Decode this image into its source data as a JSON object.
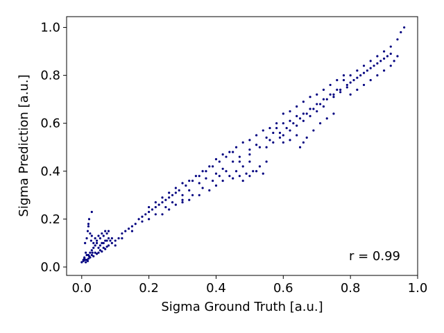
{
  "chart_data": {
    "type": "scatter",
    "title": "",
    "xlabel": "Sigma Ground Truth [a.u.]",
    "ylabel": "Sigma Prediction [a.u.]",
    "xlim": [
      -0.045,
      1.0
    ],
    "ylim": [
      -0.035,
      1.045
    ],
    "xticks": [
      0.0,
      0.2,
      0.4,
      0.6,
      0.8,
      1.0
    ],
    "xtick_labels": [
      "0.0",
      "0.2",
      "0.4",
      "0.6",
      "0.8",
      "1.0"
    ],
    "yticks": [
      0.0,
      0.2,
      0.4,
      0.6,
      0.8,
      1.0
    ],
    "ytick_labels": [
      "0.0",
      "0.2",
      "0.4",
      "0.6",
      "0.8",
      "1.0"
    ],
    "grid": false,
    "legend": "none",
    "annotation": "r = 0.99",
    "marker_color": "#000080",
    "points": [
      [
        0.0,
        0.02
      ],
      [
        0.005,
        0.025
      ],
      [
        0.01,
        0.03
      ],
      [
        0.008,
        0.04
      ],
      [
        0.012,
        0.06
      ],
      [
        0.015,
        0.05
      ],
      [
        0.02,
        0.035
      ],
      [
        0.022,
        0.045
      ],
      [
        0.025,
        0.04
      ],
      [
        0.03,
        0.05
      ],
      [
        0.032,
        0.06
      ],
      [
        0.035,
        0.045
      ],
      [
        0.04,
        0.06
      ],
      [
        0.045,
        0.055
      ],
      [
        0.05,
        0.06
      ],
      [
        0.055,
        0.07
      ],
      [
        0.06,
        0.065
      ],
      [
        0.065,
        0.08
      ],
      [
        0.07,
        0.075
      ],
      [
        0.075,
        0.085
      ],
      [
        0.01,
        0.1
      ],
      [
        0.015,
        0.12
      ],
      [
        0.018,
        0.15
      ],
      [
        0.02,
        0.17
      ],
      [
        0.022,
        0.2
      ],
      [
        0.025,
        0.14
      ],
      [
        0.028,
        0.11
      ],
      [
        0.03,
        0.13
      ],
      [
        0.035,
        0.1
      ],
      [
        0.04,
        0.12
      ],
      [
        0.045,
        0.11
      ],
      [
        0.05,
        0.13
      ],
      [
        0.055,
        0.12
      ],
      [
        0.06,
        0.14
      ],
      [
        0.065,
        0.13
      ],
      [
        0.07,
        0.15
      ],
      [
        0.075,
        0.14
      ],
      [
        0.08,
        0.15
      ],
      [
        0.03,
        0.23
      ],
      [
        0.02,
        0.18
      ],
      [
        0.08,
        0.09
      ],
      [
        0.09,
        0.1
      ],
      [
        0.1,
        0.11
      ],
      [
        0.11,
        0.12
      ],
      [
        0.12,
        0.14
      ],
      [
        0.13,
        0.15
      ],
      [
        0.14,
        0.16
      ],
      [
        0.15,
        0.17
      ],
      [
        0.16,
        0.18
      ],
      [
        0.17,
        0.2
      ],
      [
        0.18,
        0.21
      ],
      [
        0.19,
        0.22
      ],
      [
        0.2,
        0.23
      ],
      [
        0.21,
        0.24
      ],
      [
        0.22,
        0.25
      ],
      [
        0.23,
        0.26
      ],
      [
        0.24,
        0.27
      ],
      [
        0.25,
        0.28
      ],
      [
        0.26,
        0.29
      ],
      [
        0.27,
        0.3
      ],
      [
        0.1,
        0.09
      ],
      [
        0.12,
        0.12
      ],
      [
        0.15,
        0.15
      ],
      [
        0.18,
        0.19
      ],
      [
        0.2,
        0.2
      ],
      [
        0.22,
        0.22
      ],
      [
        0.25,
        0.25
      ],
      [
        0.27,
        0.27
      ],
      [
        0.3,
        0.3
      ],
      [
        0.32,
        0.32
      ],
      [
        0.2,
        0.25
      ],
      [
        0.22,
        0.27
      ],
      [
        0.24,
        0.29
      ],
      [
        0.26,
        0.31
      ],
      [
        0.28,
        0.33
      ],
      [
        0.3,
        0.35
      ],
      [
        0.32,
        0.36
      ],
      [
        0.34,
        0.38
      ],
      [
        0.36,
        0.4
      ],
      [
        0.38,
        0.42
      ],
      [
        0.28,
        0.31
      ],
      [
        0.29,
        0.32
      ],
      [
        0.31,
        0.34
      ],
      [
        0.33,
        0.36
      ],
      [
        0.35,
        0.38
      ],
      [
        0.37,
        0.4
      ],
      [
        0.39,
        0.42
      ],
      [
        0.41,
        0.44
      ],
      [
        0.43,
        0.46
      ],
      [
        0.45,
        0.48
      ],
      [
        0.3,
        0.27
      ],
      [
        0.32,
        0.28
      ],
      [
        0.35,
        0.3
      ],
      [
        0.38,
        0.32
      ],
      [
        0.4,
        0.34
      ],
      [
        0.42,
        0.36
      ],
      [
        0.44,
        0.38
      ],
      [
        0.46,
        0.4
      ],
      [
        0.48,
        0.42
      ],
      [
        0.5,
        0.44
      ],
      [
        0.35,
        0.35
      ],
      [
        0.37,
        0.37
      ],
      [
        0.4,
        0.39
      ],
      [
        0.42,
        0.41
      ],
      [
        0.45,
        0.44
      ],
      [
        0.47,
        0.46
      ],
      [
        0.5,
        0.49
      ],
      [
        0.52,
        0.51
      ],
      [
        0.55,
        0.54
      ],
      [
        0.57,
        0.56
      ],
      [
        0.4,
        0.45
      ],
      [
        0.42,
        0.47
      ],
      [
        0.44,
        0.48
      ],
      [
        0.46,
        0.5
      ],
      [
        0.48,
        0.52
      ],
      [
        0.5,
        0.53
      ],
      [
        0.52,
        0.55
      ],
      [
        0.54,
        0.57
      ],
      [
        0.56,
        0.58
      ],
      [
        0.58,
        0.6
      ],
      [
        0.45,
        0.37
      ],
      [
        0.47,
        0.38
      ],
      [
        0.49,
        0.39
      ],
      [
        0.51,
        0.4
      ],
      [
        0.53,
        0.42
      ],
      [
        0.55,
        0.44
      ],
      [
        0.5,
        0.38
      ],
      [
        0.52,
        0.4
      ],
      [
        0.54,
        0.39
      ],
      [
        0.48,
        0.36
      ],
      [
        0.55,
        0.5
      ],
      [
        0.57,
        0.52
      ],
      [
        0.59,
        0.54
      ],
      [
        0.6,
        0.55
      ],
      [
        0.62,
        0.57
      ],
      [
        0.64,
        0.59
      ],
      [
        0.66,
        0.61
      ],
      [
        0.68,
        0.63
      ],
      [
        0.7,
        0.65
      ],
      [
        0.72,
        0.67
      ],
      [
        0.58,
        0.58
      ],
      [
        0.6,
        0.6
      ],
      [
        0.62,
        0.61
      ],
      [
        0.64,
        0.63
      ],
      [
        0.66,
        0.64
      ],
      [
        0.68,
        0.66
      ],
      [
        0.7,
        0.68
      ],
      [
        0.72,
        0.7
      ],
      [
        0.74,
        0.72
      ],
      [
        0.76,
        0.74
      ],
      [
        0.6,
        0.64
      ],
      [
        0.62,
        0.65
      ],
      [
        0.64,
        0.67
      ],
      [
        0.66,
        0.69
      ],
      [
        0.68,
        0.71
      ],
      [
        0.7,
        0.72
      ],
      [
        0.72,
        0.74
      ],
      [
        0.74,
        0.76
      ],
      [
        0.76,
        0.78
      ],
      [
        0.78,
        0.8
      ],
      [
        0.6,
        0.52
      ],
      [
        0.62,
        0.53
      ],
      [
        0.64,
        0.55
      ],
      [
        0.66,
        0.52
      ],
      [
        0.65,
        0.5
      ],
      [
        0.67,
        0.54
      ],
      [
        0.69,
        0.57
      ],
      [
        0.71,
        0.6
      ],
      [
        0.73,
        0.62
      ],
      [
        0.75,
        0.64
      ],
      [
        0.75,
        0.72
      ],
      [
        0.77,
        0.74
      ],
      [
        0.79,
        0.76
      ],
      [
        0.8,
        0.77
      ],
      [
        0.82,
        0.79
      ],
      [
        0.84,
        0.81
      ],
      [
        0.86,
        0.83
      ],
      [
        0.88,
        0.85
      ],
      [
        0.9,
        0.87
      ],
      [
        0.92,
        0.89
      ],
      [
        0.78,
        0.78
      ],
      [
        0.8,
        0.8
      ],
      [
        0.82,
        0.82
      ],
      [
        0.84,
        0.84
      ],
      [
        0.86,
        0.86
      ],
      [
        0.88,
        0.88
      ],
      [
        0.9,
        0.9
      ],
      [
        0.92,
        0.92
      ],
      [
        0.94,
        0.95
      ],
      [
        0.95,
        0.98
      ],
      [
        0.8,
        0.72
      ],
      [
        0.82,
        0.74
      ],
      [
        0.84,
        0.76
      ],
      [
        0.86,
        0.78
      ],
      [
        0.88,
        0.8
      ],
      [
        0.9,
        0.82
      ],
      [
        0.92,
        0.84
      ],
      [
        0.93,
        0.86
      ],
      [
        0.94,
        0.88
      ],
      [
        0.96,
        1.0
      ],
      [
        0.005,
        0.03
      ],
      [
        0.008,
        0.035
      ],
      [
        0.012,
        0.02
      ],
      [
        0.015,
        0.03
      ],
      [
        0.018,
        0.025
      ],
      [
        0.02,
        0.05
      ],
      [
        0.025,
        0.06
      ],
      [
        0.03,
        0.07
      ],
      [
        0.035,
        0.08
      ],
      [
        0.04,
        0.09
      ],
      [
        0.045,
        0.1
      ],
      [
        0.05,
        0.08
      ],
      [
        0.055,
        0.09
      ],
      [
        0.06,
        0.1
      ],
      [
        0.065,
        0.1
      ],
      [
        0.07,
        0.11
      ],
      [
        0.075,
        0.11
      ],
      [
        0.08,
        0.12
      ],
      [
        0.085,
        0.11
      ],
      [
        0.09,
        0.12
      ],
      [
        0.24,
        0.22
      ],
      [
        0.26,
        0.24
      ],
      [
        0.28,
        0.26
      ],
      [
        0.3,
        0.28
      ],
      [
        0.33,
        0.3
      ],
      [
        0.36,
        0.33
      ],
      [
        0.39,
        0.36
      ],
      [
        0.41,
        0.38
      ],
      [
        0.43,
        0.4
      ],
      [
        0.47,
        0.44
      ],
      [
        0.5,
        0.47
      ],
      [
        0.53,
        0.5
      ],
      [
        0.56,
        0.53
      ],
      [
        0.59,
        0.56
      ],
      [
        0.61,
        0.58
      ],
      [
        0.63,
        0.6
      ],
      [
        0.65,
        0.62
      ],
      [
        0.67,
        0.64
      ],
      [
        0.69,
        0.66
      ],
      [
        0.71,
        0.68
      ],
      [
        0.73,
        0.7
      ],
      [
        0.75,
        0.71
      ],
      [
        0.77,
        0.73
      ],
      [
        0.79,
        0.75
      ],
      [
        0.81,
        0.78
      ],
      [
        0.83,
        0.8
      ],
      [
        0.85,
        0.82
      ],
      [
        0.87,
        0.84
      ],
      [
        0.89,
        0.86
      ],
      [
        0.91,
        0.88
      ]
    ]
  }
}
